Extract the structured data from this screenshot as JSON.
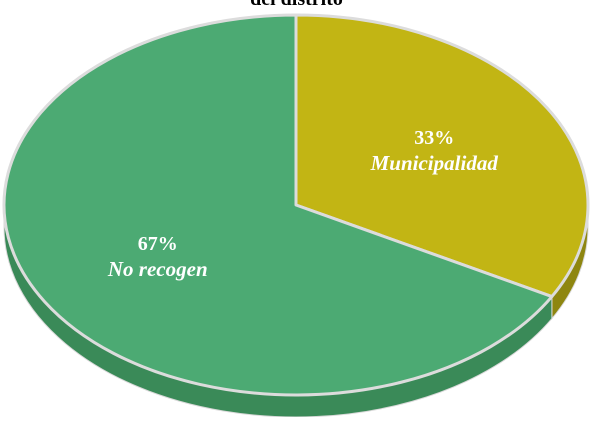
{
  "chart_data": {
    "type": "pie",
    "title": "del distrito",
    "categories": [
      "Municipalidad",
      "No recogen"
    ],
    "values": [
      33,
      67
    ],
    "value_labels": [
      "33%",
      "67%"
    ],
    "colors": [
      "#c2b514",
      "#4caa73"
    ],
    "side_colors": [
      "#8e8610",
      "#3a8a58"
    ],
    "style": "3d",
    "legend": "none"
  }
}
